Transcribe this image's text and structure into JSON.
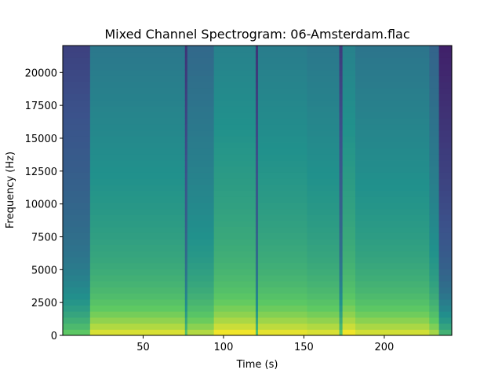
{
  "chart_data": {
    "type": "heatmap",
    "title": "Mixed Channel Spectrogram: 06-Amsterdam.flac",
    "xlabel": "Time (s)",
    "ylabel": "Frequency (Hz)",
    "xlim": [
      0,
      242
    ],
    "ylim": [
      0,
      22050
    ],
    "x_ticks": [
      50,
      100,
      150,
      200
    ],
    "y_ticks": [
      0,
      2500,
      5000,
      7500,
      10000,
      12500,
      15000,
      17500,
      20000
    ],
    "colormap": "viridis",
    "segments": [
      {
        "t0": 0,
        "t1": 17,
        "level": 0.42
      },
      {
        "t0": 17,
        "t1": 76,
        "level": 0.62
      },
      {
        "t0": 76,
        "t1": 77.5,
        "level": 0.38
      },
      {
        "t0": 77.5,
        "t1": 94,
        "level": 0.56
      },
      {
        "t0": 94,
        "t1": 120,
        "level": 0.66
      },
      {
        "t0": 120,
        "t1": 121.5,
        "level": 0.38
      },
      {
        "t0": 121.5,
        "t1": 152,
        "level": 0.64
      },
      {
        "t0": 152,
        "t1": 172,
        "level": 0.62
      },
      {
        "t0": 172,
        "t1": 174,
        "level": 0.4
      },
      {
        "t0": 174,
        "t1": 182,
        "level": 0.66
      },
      {
        "t0": 182,
        "t1": 228,
        "level": 0.61
      },
      {
        "t0": 228,
        "t1": 234,
        "level": 0.54
      },
      {
        "t0": 234,
        "t1": 242,
        "level": 0.32
      }
    ]
  }
}
